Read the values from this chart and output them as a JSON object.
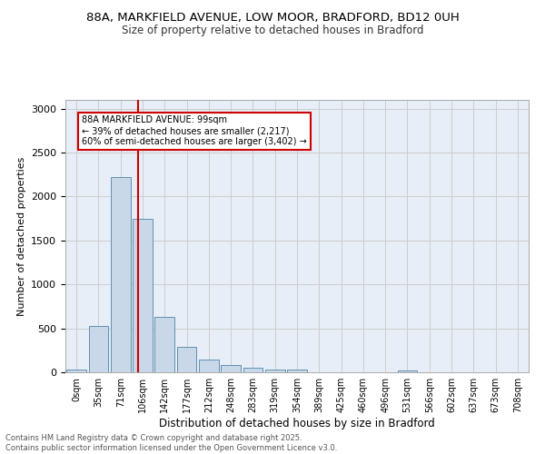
{
  "title_line1": "88A, MARKFIELD AVENUE, LOW MOOR, BRADFORD, BD12 0UH",
  "title_line2": "Size of property relative to detached houses in Bradford",
  "xlabel": "Distribution of detached houses by size in Bradford",
  "ylabel": "Number of detached properties",
  "bar_labels": [
    "0sqm",
    "35sqm",
    "71sqm",
    "106sqm",
    "142sqm",
    "177sqm",
    "212sqm",
    "248sqm",
    "283sqm",
    "319sqm",
    "354sqm",
    "389sqm",
    "425sqm",
    "460sqm",
    "496sqm",
    "531sqm",
    "566sqm",
    "602sqm",
    "637sqm",
    "673sqm",
    "708sqm"
  ],
  "bar_values": [
    30,
    530,
    2220,
    1750,
    635,
    285,
    145,
    80,
    50,
    35,
    35,
    5,
    5,
    5,
    5,
    25,
    5,
    5,
    5,
    5,
    5
  ],
  "bar_color": "#c8d8e8",
  "bar_edge_color": "#6090b0",
  "grid_color": "#cccccc",
  "bg_color": "#e8eef8",
  "red_line_x": 2.8,
  "annotation_title": "88A MARKFIELD AVENUE: 99sqm",
  "annotation_line1": "← 39% of detached houses are smaller (2,217)",
  "annotation_line2": "60% of semi-detached houses are larger (3,402) →",
  "annotation_box_color": "#ffffff",
  "annotation_border_color": "#cc0000",
  "ylim": [
    0,
    3100
  ],
  "yticks": [
    0,
    500,
    1000,
    1500,
    2000,
    2500,
    3000
  ],
  "footer_line1": "Contains HM Land Registry data © Crown copyright and database right 2025.",
  "footer_line2": "Contains public sector information licensed under the Open Government Licence v3.0."
}
